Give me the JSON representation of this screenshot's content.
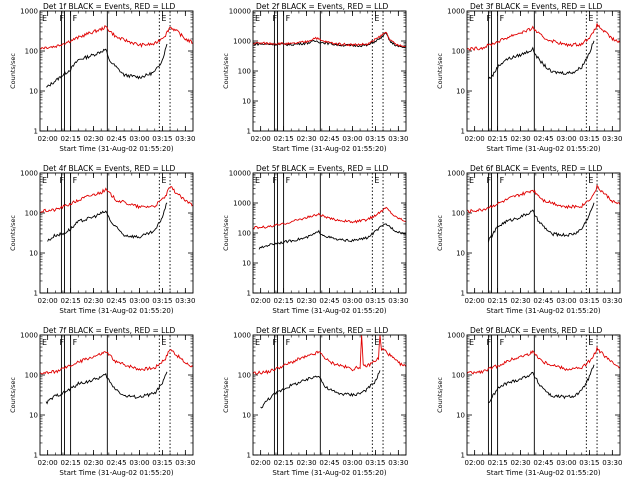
{
  "chart_data": [
    {
      "title": "Det 1f BLACK = Events, RED = LLD",
      "ylabel": "Counts/sec",
      "xlabel": "Start Time (31-Aug-02 01:55:20)",
      "type": "line",
      "yscale": "log",
      "ylim": [
        1,
        1000
      ],
      "yticks": [
        "1",
        "10",
        "100",
        "1000"
      ],
      "xticks": [
        "02:00",
        "02:15",
        "02:30",
        "02:45",
        "03:00",
        "03:15",
        "03:30"
      ],
      "xlim": [
        "01:55",
        "03:35"
      ],
      "segment_markers": [
        "E",
        "F",
        "F",
        "E"
      ],
      "marker_times": [
        "02:09",
        "02:11",
        "02:15",
        "02:39"
      ],
      "dotted_times": [
        "03:13",
        "03:20"
      ],
      "series": [
        {
          "color": "#000000",
          "x": [
            "01:59",
            "02:05",
            "02:10",
            "02:15",
            "02:20",
            "02:30",
            "02:38",
            "02:40",
            "02:50",
            "03:00",
            "03:05",
            "03:10",
            "03:15",
            "03:18"
          ],
          "y": [
            12,
            18,
            25,
            35,
            60,
            80,
            110,
            60,
            25,
            22,
            25,
            30,
            60,
            150
          ]
        },
        {
          "color": "#e00000",
          "x": [
            "01:55",
            "02:05",
            "02:15",
            "02:25",
            "02:35",
            "02:38",
            "02:45",
            "03:00",
            "03:10",
            "03:17",
            "03:20",
            "03:25",
            "03:30",
            "03:35"
          ],
          "y": [
            120,
            130,
            180,
            260,
            350,
            400,
            220,
            140,
            150,
            250,
            400,
            300,
            200,
            160
          ]
        }
      ]
    },
    {
      "title": "Det 2f BLACK = Events, RED = LLD",
      "ylabel": "Counts/sec",
      "xlabel": "Start Time (31-Aug-02 01:55:20)",
      "type": "line",
      "yscale": "log",
      "ylim": [
        1,
        10000
      ],
      "yticks": [
        "1",
        "10",
        "100",
        "1000",
        "10000"
      ],
      "xticks": [
        "02:00",
        "02:15",
        "02:30",
        "02:45",
        "03:00",
        "03:15",
        "03:30"
      ],
      "xlim": [
        "01:55",
        "03:35"
      ],
      "segment_markers": [
        "E",
        "F",
        "F",
        "E"
      ],
      "marker_times": [
        "02:09",
        "02:11",
        "02:15",
        "02:39"
      ],
      "dotted_times": [
        "03:13",
        "03:20"
      ],
      "series": [
        {
          "color": "#000000",
          "x": [
            "01:55",
            "02:10",
            "02:20",
            "02:30",
            "02:36",
            "02:40",
            "02:50",
            "03:00",
            "03:10",
            "03:18",
            "03:22",
            "03:25",
            "03:30",
            "03:35"
          ],
          "y": [
            800,
            780,
            760,
            850,
            1000,
            900,
            750,
            700,
            720,
            1200,
            1800,
            900,
            650,
            600
          ]
        },
        {
          "color": "#e00000",
          "x": [
            "01:55",
            "02:10",
            "02:20",
            "02:30",
            "02:36",
            "02:40",
            "02:50",
            "03:00",
            "03:10",
            "03:18",
            "03:22",
            "03:25",
            "03:30",
            "03:35"
          ],
          "y": [
            850,
            830,
            800,
            950,
            1300,
            1000,
            800,
            750,
            780,
            1400,
            2000,
            1000,
            700,
            650
          ]
        }
      ]
    },
    {
      "title": "Det 3f BLACK = Events, RED = LLD",
      "ylabel": "Counts/sec",
      "xlabel": "Start Time (31-Aug-02 01:55:20)",
      "type": "line",
      "yscale": "log",
      "ylim": [
        1,
        1000
      ],
      "yticks": [
        "1",
        "10",
        "100",
        "1000"
      ],
      "xticks": [
        "02:00",
        "02:15",
        "02:30",
        "02:45",
        "03:00",
        "03:15",
        "03:30"
      ],
      "xlim": [
        "01:55",
        "03:35"
      ],
      "segment_markers": [
        "E",
        "F",
        "F",
        "E"
      ],
      "marker_times": [
        "02:09",
        "02:11",
        "02:15",
        "02:39"
      ],
      "dotted_times": [
        "03:13",
        "03:20"
      ],
      "series": [
        {
          "color": "#000000",
          "x": [
            "02:09",
            "02:12",
            "02:15",
            "02:20",
            "02:30",
            "02:38",
            "02:42",
            "02:50",
            "03:00",
            "03:05",
            "03:10",
            "03:15",
            "03:18"
          ],
          "y": [
            20,
            25,
            40,
            60,
            80,
            110,
            60,
            30,
            28,
            30,
            40,
            90,
            180
          ]
        },
        {
          "color": "#e00000",
          "x": [
            "01:55",
            "02:05",
            "02:15",
            "02:25",
            "02:35",
            "02:38",
            "02:45",
            "03:00",
            "03:10",
            "03:17",
            "03:20",
            "03:25",
            "03:30",
            "03:35"
          ],
          "y": [
            110,
            120,
            170,
            250,
            330,
            380,
            210,
            140,
            150,
            260,
            450,
            300,
            200,
            160
          ]
        }
      ]
    },
    {
      "title": "Det 4f BLACK = Events, RED = LLD",
      "ylabel": "Counts/sec",
      "xlabel": "Start Time (31-Aug-02 01:55:20)",
      "type": "line",
      "yscale": "log",
      "ylim": [
        1,
        1000
      ],
      "yticks": [
        "1",
        "10",
        "100",
        "1000"
      ],
      "xticks": [
        "02:00",
        "02:15",
        "02:30",
        "02:45",
        "03:00",
        "03:15",
        "03:30"
      ],
      "xlim": [
        "01:55",
        "03:35"
      ],
      "segment_markers": [
        "E",
        "F",
        "F",
        "E"
      ],
      "marker_times": [
        "02:09",
        "02:11",
        "02:15",
        "02:39"
      ],
      "dotted_times": [
        "03:13",
        "03:20"
      ],
      "series": [
        {
          "color": "#000000",
          "x": [
            "02:00",
            "02:05",
            "02:10",
            "02:15",
            "02:20",
            "02:30",
            "02:38",
            "02:42",
            "02:50",
            "03:00",
            "03:10",
            "03:15",
            "03:18"
          ],
          "y": [
            20,
            28,
            30,
            40,
            60,
            80,
            110,
            55,
            28,
            25,
            35,
            80,
            180
          ]
        },
        {
          "color": "#e00000",
          "x": [
            "01:55",
            "02:05",
            "02:15",
            "02:25",
            "02:35",
            "02:38",
            "02:45",
            "03:00",
            "03:10",
            "03:17",
            "03:20",
            "03:25",
            "03:30",
            "03:35"
          ],
          "y": [
            110,
            120,
            170,
            250,
            330,
            380,
            210,
            140,
            150,
            260,
            450,
            300,
            200,
            160
          ]
        }
      ]
    },
    {
      "title": "Det 5f BLACK = Events, RED = LLD",
      "ylabel": "Counts/sec",
      "xlabel": "Start Time (31-Aug-02 01:55:20)",
      "type": "line",
      "yscale": "log",
      "ylim": [
        1,
        10000
      ],
      "yticks": [
        "1",
        "10",
        "100",
        "1000",
        "10000"
      ],
      "xticks": [
        "02:00",
        "02:15",
        "02:30",
        "02:45",
        "03:00",
        "03:15",
        "03:30"
      ],
      "xlim": [
        "01:55",
        "03:35"
      ],
      "segment_markers": [
        "E",
        "F",
        "F",
        "E"
      ],
      "marker_times": [
        "02:09",
        "02:11",
        "02:15",
        "02:39"
      ],
      "dotted_times": [
        "03:13",
        "03:20"
      ],
      "series": [
        {
          "color": "#000000",
          "x": [
            "01:59",
            "02:05",
            "02:10",
            "02:20",
            "02:30",
            "02:38",
            "02:42",
            "02:50",
            "03:00",
            "03:10",
            "03:18",
            "03:22",
            "03:28",
            "03:35"
          ],
          "y": [
            30,
            40,
            45,
            55,
            70,
            110,
            80,
            60,
            55,
            70,
            150,
            200,
            120,
            90
          ]
        },
        {
          "color": "#e00000",
          "x": [
            "01:55",
            "02:05",
            "02:15",
            "02:25",
            "02:35",
            "02:38",
            "02:45",
            "03:00",
            "03:10",
            "03:17",
            "03:22",
            "03:28",
            "03:35"
          ],
          "y": [
            150,
            160,
            200,
            280,
            380,
            420,
            300,
            230,
            280,
            450,
            700,
            350,
            250
          ]
        }
      ]
    },
    {
      "title": "Det 6f BLACK = Events, RED = LLD",
      "ylabel": "Counts/sec",
      "xlabel": "Start Time (31-Aug-02 01:55:20)",
      "type": "line",
      "yscale": "log",
      "ylim": [
        1,
        1000
      ],
      "yticks": [
        "1",
        "10",
        "100",
        "1000"
      ],
      "xticks": [
        "02:00",
        "02:15",
        "02:30",
        "02:45",
        "03:00",
        "03:15",
        "03:30"
      ],
      "xlim": [
        "01:55",
        "03:35"
      ],
      "segment_markers": [
        "E",
        "F",
        "F",
        "E"
      ],
      "marker_times": [
        "02:09",
        "02:11",
        "02:15",
        "02:39"
      ],
      "dotted_times": [
        "03:13",
        "03:20"
      ],
      "series": [
        {
          "color": "#000000",
          "x": [
            "02:09",
            "02:12",
            "02:15",
            "02:20",
            "02:30",
            "02:38",
            "02:42",
            "02:50",
            "03:00",
            "03:05",
            "03:10",
            "03:15",
            "03:18"
          ],
          "y": [
            20,
            30,
            45,
            60,
            80,
            110,
            60,
            30,
            28,
            30,
            40,
            90,
            180
          ]
        },
        {
          "color": "#e00000",
          "x": [
            "01:55",
            "02:05",
            "02:15",
            "02:25",
            "02:35",
            "02:38",
            "02:45",
            "03:00",
            "03:10",
            "03:17",
            "03:20",
            "03:25",
            "03:30",
            "03:35"
          ],
          "y": [
            110,
            120,
            170,
            250,
            330,
            380,
            210,
            140,
            150,
            260,
            450,
            300,
            200,
            160
          ]
        }
      ]
    },
    {
      "title": "Det 7f BLACK = Events, RED = LLD",
      "ylabel": "Counts/sec",
      "xlabel": "Start Time (31-Aug-02 01:55:20)",
      "type": "line",
      "yscale": "log",
      "ylim": [
        1,
        1000
      ],
      "yticks": [
        "1",
        "10",
        "100",
        "1000"
      ],
      "xticks": [
        "02:00",
        "02:15",
        "02:30",
        "02:45",
        "03:00",
        "03:15",
        "03:30"
      ],
      "xlim": [
        "01:55",
        "03:35"
      ],
      "segment_markers": [
        "E",
        "F",
        "F",
        "E"
      ],
      "marker_times": [
        "02:09",
        "02:11",
        "02:15",
        "02:39"
      ],
      "dotted_times": [
        "03:13",
        "03:20"
      ],
      "series": [
        {
          "color": "#000000",
          "x": [
            "01:59",
            "02:05",
            "02:10",
            "02:15",
            "02:20",
            "02:30",
            "02:38",
            "02:42",
            "02:50",
            "03:00",
            "03:10",
            "03:15",
            "03:18"
          ],
          "y": [
            20,
            30,
            35,
            45,
            60,
            75,
            100,
            55,
            30,
            28,
            35,
            60,
            120
          ]
        },
        {
          "color": "#e00000",
          "x": [
            "01:55",
            "02:05",
            "02:15",
            "02:25",
            "02:35",
            "02:38",
            "02:45",
            "03:00",
            "03:10",
            "03:17",
            "03:20",
            "03:25",
            "03:30",
            "03:35"
          ],
          "y": [
            110,
            120,
            170,
            250,
            330,
            380,
            210,
            140,
            150,
            260,
            450,
            300,
            200,
            160
          ]
        }
      ]
    },
    {
      "title": "Det 8f BLACK = Events, RED = LLD",
      "ylabel": "Counts/sec",
      "xlabel": "Start Time (31-Aug-02 01:55:20)",
      "type": "line",
      "yscale": "log",
      "ylim": [
        1,
        1000
      ],
      "yticks": [
        "1",
        "10",
        "100",
        "1000"
      ],
      "xticks": [
        "02:00",
        "02:15",
        "02:30",
        "02:45",
        "03:00",
        "03:15",
        "03:30"
      ],
      "xlim": [
        "01:55",
        "03:35"
      ],
      "segment_markers": [
        "E",
        "F",
        "F",
        "E"
      ],
      "marker_times": [
        "02:09",
        "02:11",
        "02:15",
        "02:39"
      ],
      "dotted_times": [
        "03:13",
        "03:20"
      ],
      "series": [
        {
          "color": "#000000",
          "x": [
            "02:00",
            "02:05",
            "02:10",
            "02:15",
            "02:20",
            "02:30",
            "02:38",
            "02:42",
            "02:50",
            "03:00",
            "03:05",
            "03:10",
            "03:15",
            "03:18"
          ],
          "y": [
            15,
            25,
            35,
            45,
            55,
            75,
            100,
            50,
            35,
            32,
            35,
            45,
            70,
            130
          ]
        },
        {
          "color": "#e00000",
          "x": [
            "01:55",
            "02:05",
            "02:15",
            "02:25",
            "02:35",
            "02:38",
            "02:45",
            "03:00",
            "03:05",
            "03:06",
            "03:07",
            "03:10",
            "03:17",
            "03:18",
            "03:19",
            "03:20",
            "03:25",
            "03:30",
            "03:35"
          ],
          "y": [
            110,
            120,
            170,
            250,
            330,
            380,
            210,
            140,
            160,
            1000,
            170,
            170,
            260,
            1000,
            400,
            450,
            300,
            200,
            160
          ]
        }
      ]
    },
    {
      "title": "Det 9f BLACK = Events, RED = LLD",
      "ylabel": "Counts/sec",
      "xlabel": "Start Time (31-Aug-02 01:55:20)",
      "type": "line",
      "yscale": "log",
      "ylim": [
        1,
        1000
      ],
      "yticks": [
        "1",
        "10",
        "100",
        "1000"
      ],
      "xticks": [
        "02:00",
        "02:15",
        "02:30",
        "02:45",
        "03:00",
        "03:15",
        "03:30"
      ],
      "xlim": [
        "01:55",
        "03:35"
      ],
      "segment_markers": [
        "E",
        "F",
        "F",
        "E"
      ],
      "marker_times": [
        "02:09",
        "02:11",
        "02:15",
        "02:39"
      ],
      "dotted_times": [
        "03:13",
        "03:20"
      ],
      "series": [
        {
          "color": "#000000",
          "x": [
            "02:09",
            "02:12",
            "02:15",
            "02:20",
            "02:30",
            "02:38",
            "02:42",
            "02:50",
            "03:00",
            "03:05",
            "03:10",
            "03:15",
            "03:18"
          ],
          "y": [
            20,
            30,
            45,
            60,
            80,
            110,
            60,
            30,
            28,
            30,
            40,
            90,
            180
          ]
        },
        {
          "color": "#e00000",
          "x": [
            "01:55",
            "02:05",
            "02:15",
            "02:25",
            "02:35",
            "02:38",
            "02:45",
            "03:00",
            "03:10",
            "03:17",
            "03:20",
            "03:25",
            "03:30",
            "03:35"
          ],
          "y": [
            110,
            120,
            170,
            250,
            330,
            380,
            210,
            140,
            150,
            260,
            450,
            300,
            200,
            160
          ]
        }
      ]
    }
  ]
}
